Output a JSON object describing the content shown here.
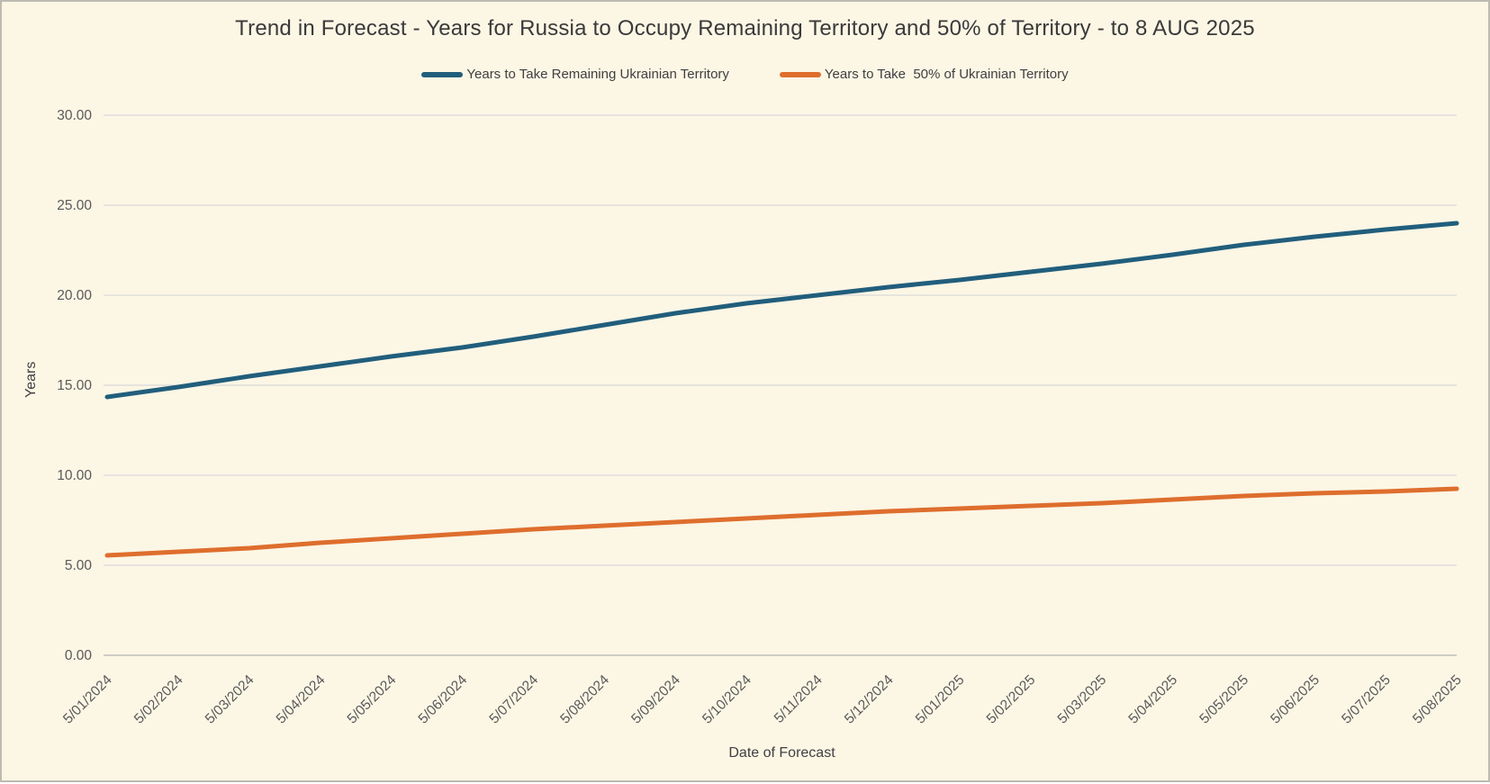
{
  "window": {
    "background_color": "#FCF6E5",
    "border_color": "#BDBBB1",
    "gridline_color": "#D9D9D9",
    "axis_line_color": "#BFBFBF",
    "tick_label_color": "#595959"
  },
  "chart_data": {
    "type": "line",
    "title": "Trend in Forecast - Years for Russia to Occupy Remaining Territory and 50% of Territory - to 8 AUG 2025",
    "xlabel": "Date of Forecast",
    "ylabel": "Years",
    "ylim": [
      0,
      30
    ],
    "ytick_labels": [
      "0.00",
      "5.00",
      "10.00",
      "15.00",
      "20.00",
      "25.00",
      "30.00"
    ],
    "ytick_values": [
      0,
      5,
      10,
      15,
      20,
      25,
      30
    ],
    "grid": true,
    "legend_position": "top",
    "categories": [
      "5/01/2024",
      "5/02/2024",
      "5/03/2024",
      "5/04/2024",
      "5/05/2024",
      "5/06/2024",
      "5/07/2024",
      "5/08/2024",
      "5/09/2024",
      "5/10/2024",
      "5/11/2024",
      "5/12/2024",
      "5/01/2025",
      "5/02/2025",
      "5/03/2025",
      "5/04/2025",
      "5/05/2025",
      "5/06/2025",
      "5/07/2025",
      "5/08/2025"
    ],
    "series": [
      {
        "name": "Years to Take Remaining Ukrainian Territory",
        "color": "#215E7C",
        "values": [
          14.35,
          14.9,
          15.5,
          16.05,
          16.6,
          17.1,
          17.7,
          18.35,
          19.0,
          19.55,
          20.0,
          20.45,
          20.85,
          21.3,
          21.75,
          22.25,
          22.8,
          23.25,
          23.65,
          24.0
        ]
      },
      {
        "name": "Years to Take  50% of Ukrainian Territory",
        "color": "#DE6E2D",
        "values": [
          5.55,
          5.75,
          5.95,
          6.25,
          6.5,
          6.75,
          7.0,
          7.2,
          7.4,
          7.6,
          7.8,
          8.0,
          8.15,
          8.3,
          8.45,
          8.65,
          8.85,
          9.0,
          9.1,
          9.25
        ]
      }
    ]
  }
}
